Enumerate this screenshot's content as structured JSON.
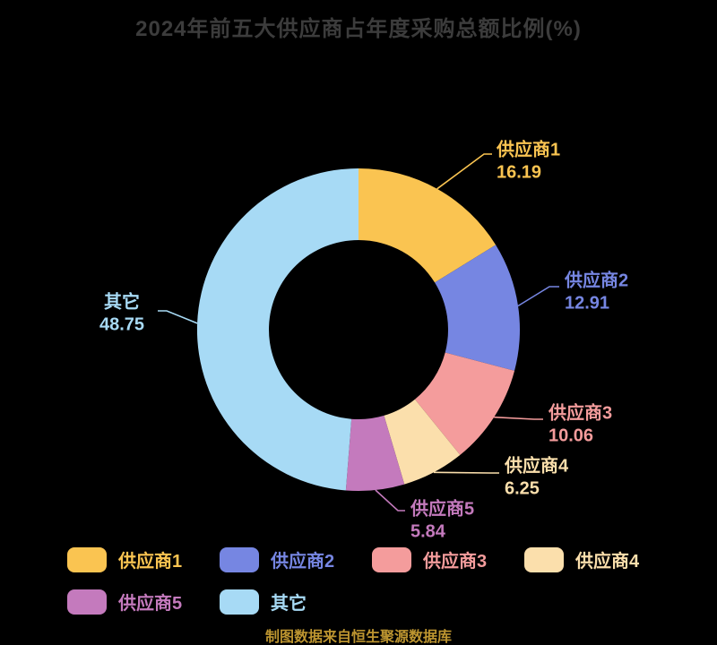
{
  "title": "2024年前五大供应商占年度采购总额比例(%)",
  "footer": "制图数据来自恒生聚源数据库",
  "colors": {
    "background": "#000000",
    "title_text": "#3c3c3c",
    "footer_text": "#bd9530"
  },
  "chart_data": {
    "type": "pie",
    "subtype": "donut",
    "title": "2024年前五大供应商占年度采购总额比例(%)",
    "unit": "%",
    "start_angle": "top",
    "direction": "clockwise",
    "legend_position": "bottom",
    "labels_show_value": true,
    "series": [
      {
        "name": "供应商1",
        "value": 16.19,
        "color": "#fac451"
      },
      {
        "name": "供应商2",
        "value": 12.91,
        "color": "#7686e2"
      },
      {
        "name": "供应商3",
        "value": 10.06,
        "color": "#f49c9c"
      },
      {
        "name": "供应商4",
        "value": 6.25,
        "color": "#fbdfac"
      },
      {
        "name": "供应商5",
        "value": 5.84,
        "color": "#c47abd"
      },
      {
        "name": "其它",
        "value": 48.75,
        "color": "#a7daf5"
      }
    ]
  }
}
